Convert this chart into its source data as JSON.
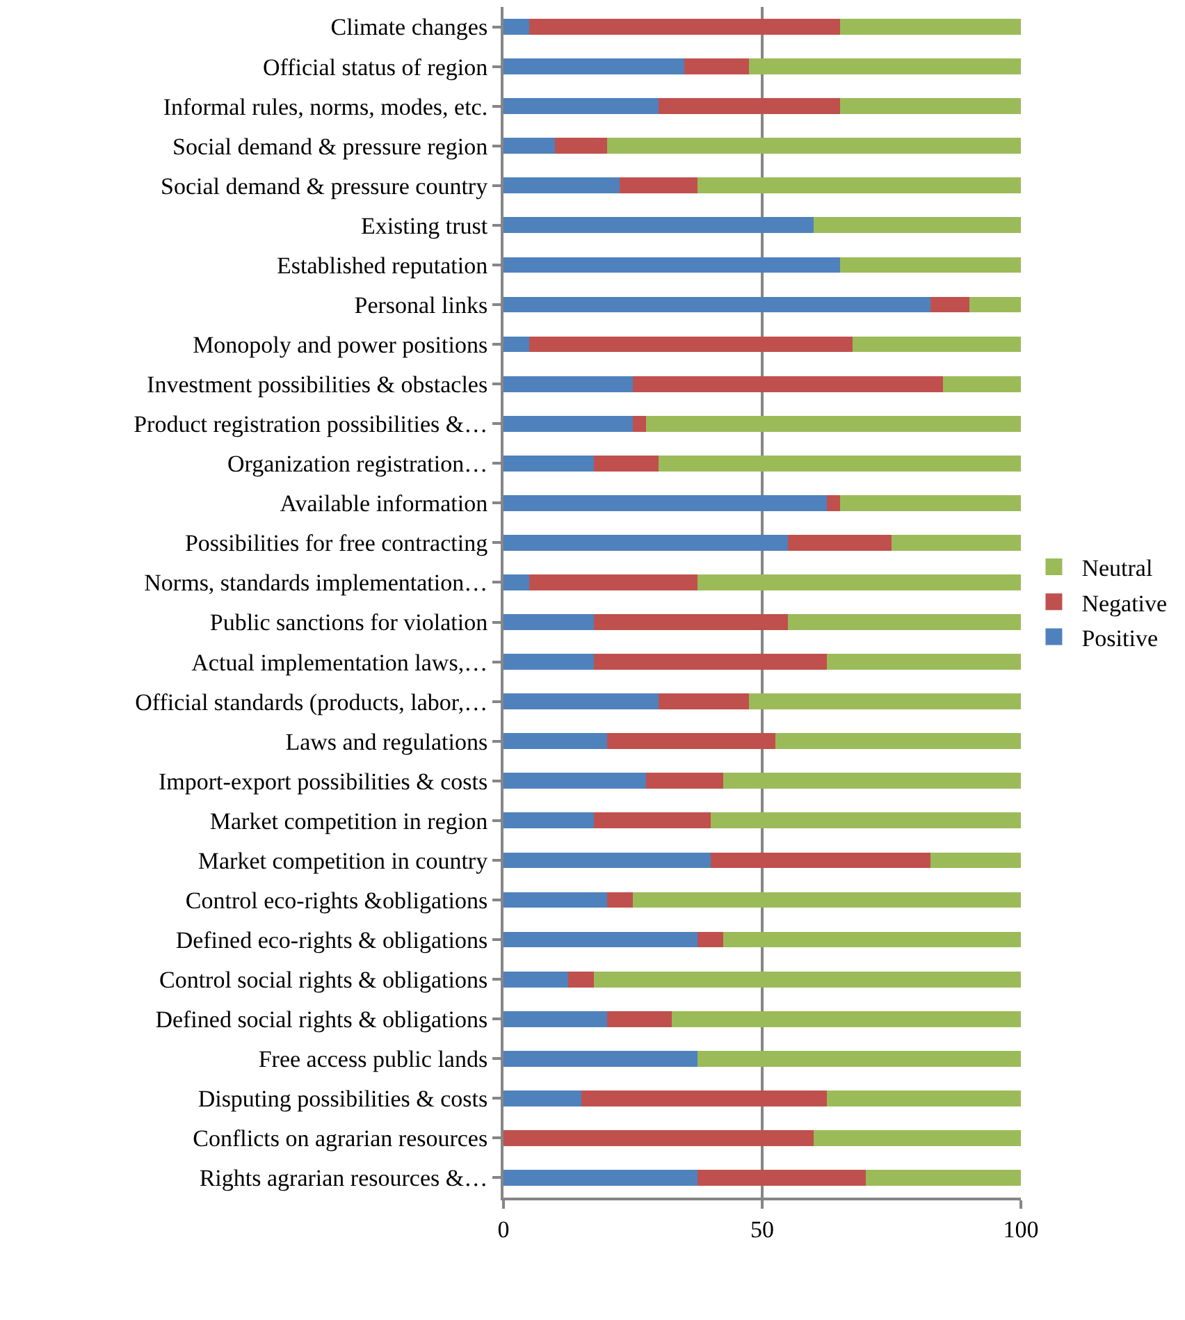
{
  "chart_data": {
    "type": "bar",
    "orientation": "horizontal",
    "stacked": true,
    "categories": [
      "Climate changes",
      "Official status of region",
      "Informal rules, norms, modes, etc.",
      "Social demand & pressure region",
      "Social demand & pressure country",
      "Existing trust",
      "Established reputation",
      "Personal links",
      "Monopoly and power positions",
      "Investment possibilities & obstacles",
      "Product registration possibilities &…",
      "Organization registration…",
      "Available information",
      "Possibilities for free contracting",
      "Norms, standards implementation…",
      "Public sanctions for violation",
      "Actual implementation laws,…",
      "Official standards (products, labor,…",
      "Laws and regulations",
      "Import-export possibilities & costs",
      "Market competition in region",
      "Market competition in country",
      "Control eco-rights &obligations",
      "Defined eco-rights & obligations",
      "Control social rights & obligations",
      "Defined social rights & obligations",
      "Free access public lands",
      "Disputing possibilities & costs",
      "Conflicts on agrarian resources",
      "Rights agrarian resources &…"
    ],
    "series": [
      {
        "name": "Positive",
        "color": "#4f81bd",
        "values": [
          5,
          35,
          30,
          10,
          22.5,
          60,
          65,
          82.5,
          5,
          25,
          25,
          17.5,
          62.5,
          55,
          5,
          17.5,
          17.5,
          30,
          20,
          27.5,
          17.5,
          40,
          20,
          37.5,
          12.5,
          20,
          37.5,
          15,
          0,
          37.5
        ]
      },
      {
        "name": "Negative",
        "color": "#c0504d",
        "values": [
          60,
          12.5,
          35,
          10,
          15,
          0,
          0,
          7.5,
          62.5,
          60,
          2.5,
          12.5,
          2.5,
          20,
          32.5,
          37.5,
          45,
          17.5,
          32.5,
          15,
          22.5,
          42.5,
          5,
          5,
          5,
          12.5,
          0,
          47.5,
          60,
          32.5
        ]
      },
      {
        "name": "Neutral",
        "color": "#9bbb59",
        "values": [
          35,
          52.5,
          35,
          80,
          62.5,
          40,
          35,
          10,
          32.5,
          15,
          72.5,
          70,
          35,
          25,
          62.5,
          45,
          37.5,
          52.5,
          47.5,
          57.5,
          60,
          17.5,
          75,
          57.5,
          82.5,
          67.5,
          62.5,
          37.5,
          40,
          30
        ]
      }
    ],
    "xlim": [
      0,
      100
    ],
    "xticks": [
      0,
      50,
      100
    ],
    "grid": "x",
    "legend": "right"
  }
}
